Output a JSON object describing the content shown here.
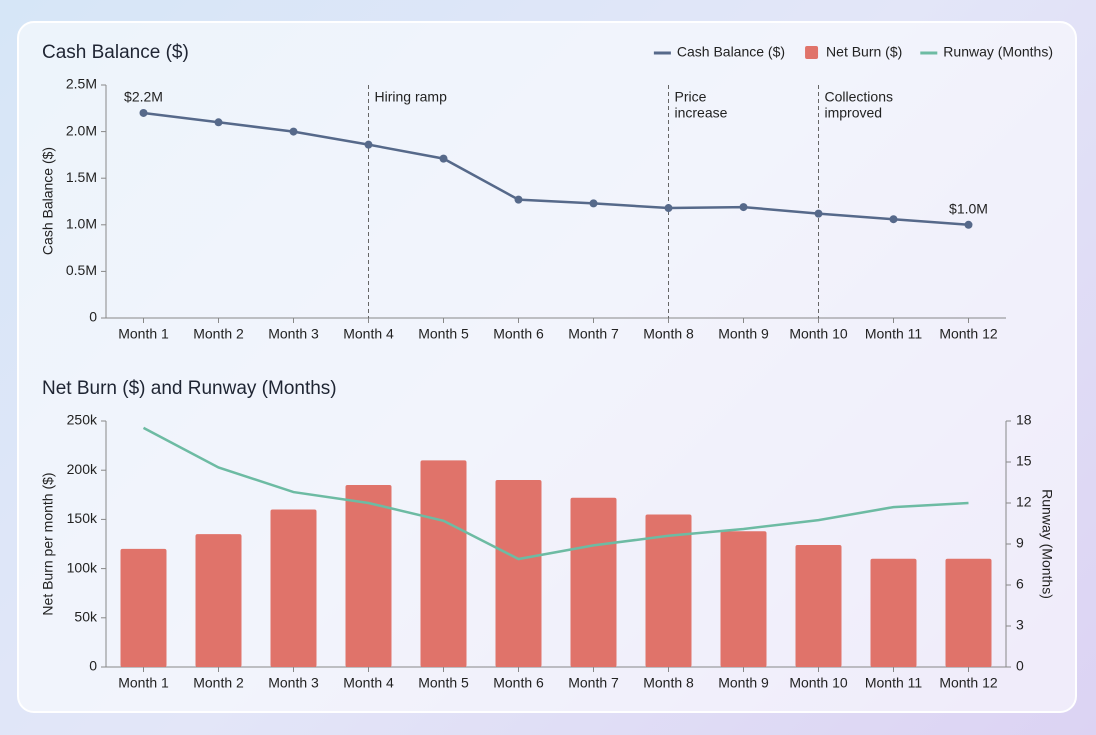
{
  "chart_data": [
    {
      "type": "line",
      "title": "Cash Balance ($)",
      "y_label": "Cash Balance ($)",
      "categories": [
        "Month 1",
        "Month 2",
        "Month 3",
        "Month 4",
        "Month 5",
        "Month 6",
        "Month 7",
        "Month 8",
        "Month 9",
        "Month 10",
        "Month 11",
        "Month 12"
      ],
      "series": [
        {
          "name": "Cash Balance ($)",
          "color": "#56698a",
          "values": [
            2200000,
            2100000,
            2000000,
            1860000,
            1710000,
            1270000,
            1230000,
            1180000,
            1190000,
            1120000,
            1060000,
            1000000
          ],
          "value_labels": [
            "$2.2M",
            null,
            null,
            null,
            null,
            null,
            null,
            null,
            null,
            null,
            null,
            "$1.0M"
          ]
        }
      ],
      "ylim": [
        0,
        2500000
      ],
      "yticks": [
        0,
        {
          "value": 500000,
          "label": "0.5M"
        },
        {
          "value": 1000000,
          "label": "1.0M"
        },
        {
          "value": 1500000,
          "label": "1.5M"
        },
        {
          "value": 2000000,
          "label": "2.0M"
        },
        {
          "value": 2500000,
          "label": "2.5M"
        }
      ],
      "annotations": [
        {
          "x": "Month 4",
          "label": [
            "Hiring ramp"
          ]
        },
        {
          "x": "Month 8",
          "label": [
            "Price",
            "increase"
          ]
        },
        {
          "x": "Month 10",
          "label": [
            "Collections",
            "improved"
          ]
        }
      ],
      "legend": "top-right"
    },
    {
      "type": "bar",
      "title": "Net Burn ($) and Runway (Months)",
      "y_label": "Net Burn per month ($)",
      "y2_label": "Runway (Months)",
      "categories": [
        "Month 1",
        "Month 2",
        "Month 3",
        "Month 4",
        "Month 5",
        "Month 6",
        "Month 7",
        "Month 8",
        "Month 9",
        "Month 10",
        "Month 11",
        "Month 12"
      ],
      "series": [
        {
          "name": "Net Burn ($)",
          "color": "#e0736a",
          "values": [
            120000,
            135000,
            160000,
            185000,
            210000,
            190000,
            172000,
            155000,
            138000,
            124000,
            110000,
            110000
          ]
        },
        {
          "name": "Runway (Months)",
          "color": "#6dbba3",
          "type": "line",
          "axis": "y2",
          "values": [
            17.5,
            14.6,
            12.8,
            12.0,
            10.7,
            7.9,
            8.9,
            9.6,
            10.1,
            10.75,
            11.7,
            12.0
          ]
        }
      ],
      "ylim": [
        0,
        250000
      ],
      "yticks": [
        0,
        {
          "value": 50000,
          "label": "50k"
        },
        {
          "value": 100000,
          "label": "100k"
        },
        {
          "value": 150000,
          "label": "150k"
        },
        {
          "value": 200000,
          "label": "200k"
        },
        {
          "value": 250000,
          "label": "250k"
        }
      ],
      "y2lim": [
        0,
        18
      ],
      "y2ticks": [
        0,
        3,
        6,
        9,
        12,
        15,
        18
      ]
    }
  ]
}
